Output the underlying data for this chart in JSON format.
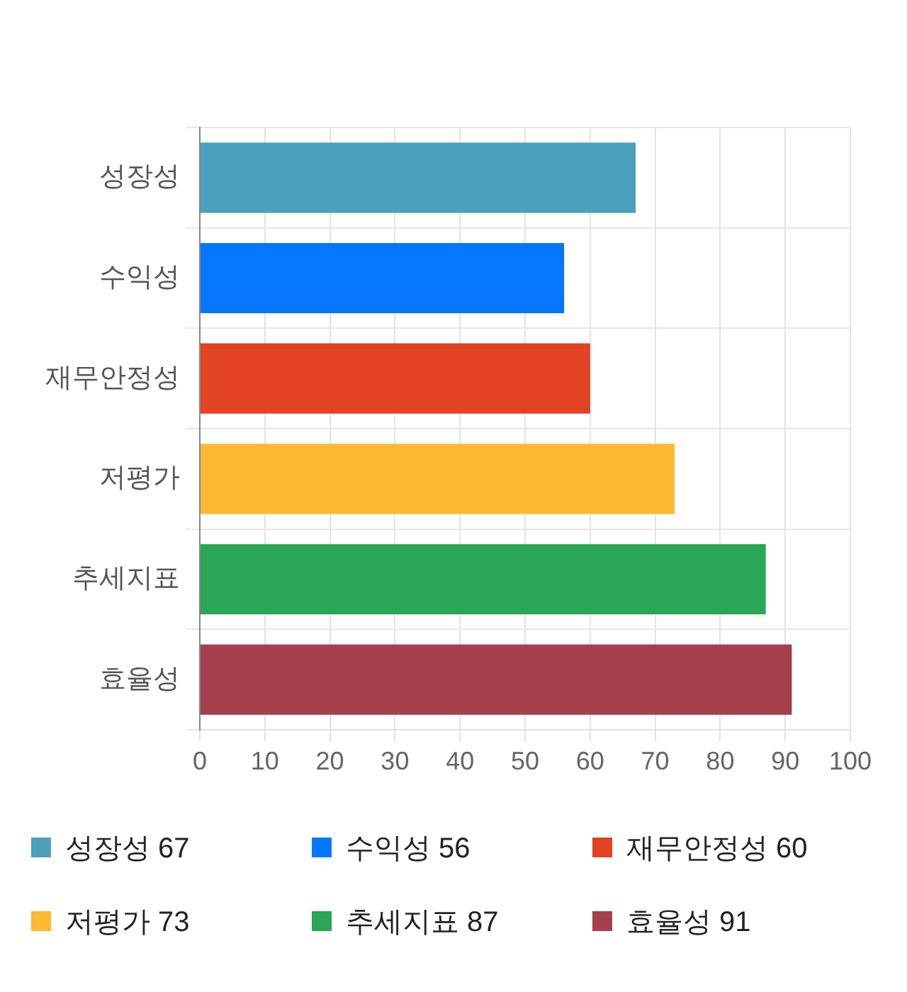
{
  "chart_data": {
    "type": "bar",
    "orientation": "horizontal",
    "categories": [
      "성장성",
      "수익성",
      "재무안정성",
      "저평가",
      "추세지표",
      "효율성"
    ],
    "values": [
      67,
      56,
      60,
      73,
      87,
      91
    ],
    "value_labels": [
      "67",
      "56",
      "60",
      "73",
      "87",
      "91"
    ],
    "colors": [
      "#4aa0ba",
      "#0577fe",
      "#e24322",
      "#fdb933",
      "#29a656",
      "#a6404e"
    ],
    "xlim": [
      0,
      100
    ],
    "xticks": [
      0,
      10,
      20,
      30,
      40,
      50,
      60,
      70,
      80,
      90,
      100
    ],
    "grid": true
  }
}
